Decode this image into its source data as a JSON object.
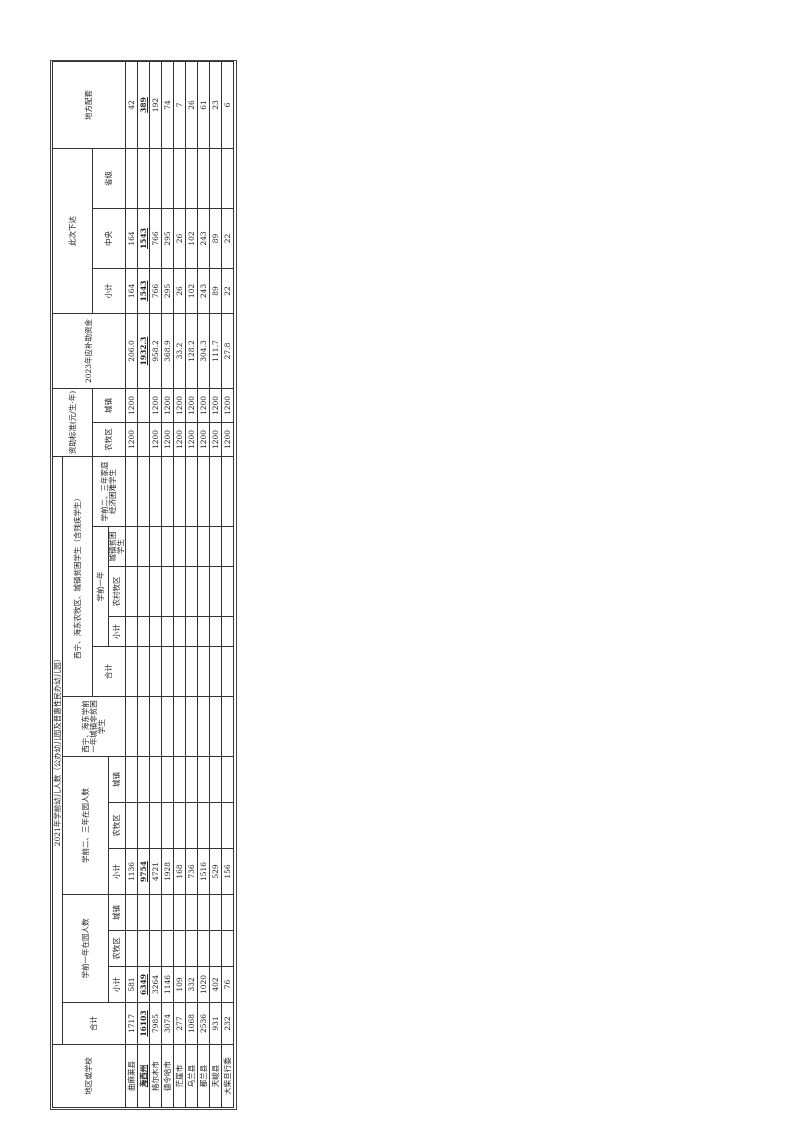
{
  "header": {
    "region": "地区或学校",
    "main_title": "2021年学前幼儿人数（公办幼儿园及普惠性民办幼儿园）",
    "total": "合计",
    "pre1_group": "学前一年在园人数",
    "pre23_group": "学前二、三年在园人数",
    "subtotal": "小计",
    "rural": "农牧区",
    "urban": "城镇",
    "xn_nonpoor": "西宁、海东学前一年城镇非贫困学生",
    "xn_poor_group": "西宁、海东农牧区、城镇贫困学生（含残疾学生）",
    "xn_total": "合计",
    "xn_pre1": "学前一年",
    "xn_pre1_subtotal": "小计",
    "xn_pre1_rural": "农村牧区",
    "xn_pre1_urban": "城镇贫困学生",
    "xn_pre23": "学前二、三年家庭经济困难学生",
    "standard_group": "资助标准(元/生·年)",
    "standard_rural": "农牧区",
    "standard_urban": "城镇",
    "funds_2023": "2023年应补助资金",
    "issued_group": "此次下达",
    "issued_subtotal": "小计",
    "issued_central": "中央",
    "issued_provincial": "省级",
    "local_match": "地方配套"
  },
  "rows": [
    [
      "曲麻莱县",
      "1717",
      "581",
      "",
      "",
      "1136",
      "",
      "",
      "",
      "",
      "",
      "",
      "",
      "",
      "1200",
      "1200",
      "206.0",
      "164",
      "164",
      "",
      "42"
    ],
    [
      "海西州",
      "16103",
      "6349",
      "",
      "",
      "9754",
      "",
      "",
      "",
      "",
      "",
      "",
      "",
      "",
      "",
      "",
      "1932.3",
      "1543",
      "1543",
      "",
      "389"
    ],
    [
      "格尔木市",
      "7985",
      "3264",
      "",
      "",
      "4721",
      "",
      "",
      "",
      "",
      "",
      "",
      "",
      "",
      "1200",
      "1200",
      "958.2",
      "766",
      "766",
      "",
      "192"
    ],
    [
      "德令哈市",
      "3074",
      "1146",
      "",
      "",
      "1928",
      "",
      "",
      "",
      "",
      "",
      "",
      "",
      "",
      "1200",
      "1200",
      "368.9",
      "295",
      "295",
      "",
      "74"
    ],
    [
      "茫崖市",
      "277",
      "109",
      "",
      "",
      "168",
      "",
      "",
      "",
      "",
      "",
      "",
      "",
      "",
      "1200",
      "1200",
      "33.2",
      "26",
      "26",
      "",
      "7"
    ],
    [
      "乌兰县",
      "1068",
      "332",
      "",
      "",
      "736",
      "",
      "",
      "",
      "",
      "",
      "",
      "",
      "",
      "1200",
      "1200",
      "128.2",
      "102",
      "102",
      "",
      "26"
    ],
    [
      "都兰县",
      "2536",
      "1020",
      "",
      "",
      "1516",
      "",
      "",
      "",
      "",
      "",
      "",
      "",
      "",
      "1200",
      "1200",
      "304.3",
      "243",
      "243",
      "",
      "61"
    ],
    [
      "天峻县",
      "931",
      "402",
      "",
      "",
      "529",
      "",
      "",
      "",
      "",
      "",
      "",
      "",
      "",
      "1200",
      "1200",
      "111.7",
      "89",
      "89",
      "",
      "23"
    ],
    [
      "大柴旦行委",
      "232",
      "76",
      "",
      "",
      "156",
      "",
      "",
      "",
      "",
      "",
      "",
      "",
      "",
      "1200",
      "1200",
      "27.8",
      "22",
      "22",
      "",
      "6"
    ]
  ],
  "bold_rows": [
    "海西州"
  ]
}
